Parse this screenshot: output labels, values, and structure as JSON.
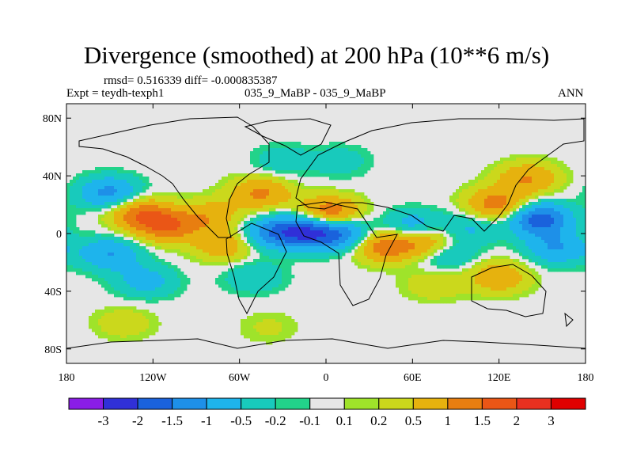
{
  "chart_data": {
    "type": "heatmap",
    "title": "Divergence (smoothed) at 200 hPa (10**6 m/s)",
    "stats_text": "rmsd= 0.516339  diff= -0.000835387",
    "experiment_text": "Expt = teydh-texph1",
    "case_text": "035_9_MaBP - 035_9_MaBP",
    "period": "ANN",
    "x_axis": {
      "range": [
        -180,
        180
      ],
      "ticks": [
        -180,
        -120,
        -60,
        0,
        60,
        120,
        180
      ],
      "tick_labels": [
        "180",
        "120W",
        "60W",
        "0",
        "60E",
        "120E",
        "180"
      ]
    },
    "y_axis": {
      "range": [
        -90,
        90
      ],
      "ticks": [
        -80,
        -40,
        0,
        40,
        80
      ],
      "tick_labels": [
        "80S",
        "40S",
        "0",
        "40N",
        "80N"
      ]
    },
    "colorbar": {
      "levels": [
        "-3",
        "-2",
        "-1.5",
        "-1",
        "-0.5",
        "-0.2",
        "-0.1",
        "0.1",
        "0.2",
        "0.5",
        "1",
        "1.5",
        "2",
        "3"
      ],
      "colors": [
        "#8a1de6",
        "#3030d8",
        "#1a62dc",
        "#1e90e8",
        "#1eb4ec",
        "#18cabc",
        "#22d38a",
        "#e6e6e6",
        "#9fe32a",
        "#cbd81c",
        "#e6b20e",
        "#e87e10",
        "#ea5616",
        "#e83020",
        "#e00000"
      ]
    },
    "anomalies": [
      {
        "lon": -150,
        "lat": 28,
        "value": -1.2
      },
      {
        "lon": -130,
        "lat": 14,
        "value": 1.3
      },
      {
        "lon": -150,
        "lat": -14,
        "value": -1.0
      },
      {
        "lon": -110,
        "lat": 5,
        "value": 1.4
      },
      {
        "lon": -80,
        "lat": 12,
        "value": 0.8
      },
      {
        "lon": -70,
        "lat": -8,
        "value": 0.9
      },
      {
        "lon": -45,
        "lat": 28,
        "value": 1.1
      },
      {
        "lon": -40,
        "lat": 0,
        "value": -1.1
      },
      {
        "lon": -15,
        "lat": 2,
        "value": -1.9
      },
      {
        "lon": 2,
        "lat": 14,
        "value": 1.6
      },
      {
        "lon": 10,
        "lat": 0,
        "value": -1.5
      },
      {
        "lon": 40,
        "lat": -8,
        "value": 1.4
      },
      {
        "lon": 70,
        "lat": -6,
        "value": 1.3
      },
      {
        "lon": 60,
        "lat": 4,
        "value": -1.0
      },
      {
        "lon": 82,
        "lat": -14,
        "value": -0.8
      },
      {
        "lon": 100,
        "lat": 4,
        "value": -0.6
      },
      {
        "lon": 118,
        "lat": 20,
        "value": 1.3
      },
      {
        "lon": 148,
        "lat": 10,
        "value": -1.8
      },
      {
        "lon": 140,
        "lat": 38,
        "value": 1.0
      },
      {
        "lon": 160,
        "lat": -10,
        "value": -1.0
      },
      {
        "lon": 120,
        "lat": -30,
        "value": 0.9
      },
      {
        "lon": -125,
        "lat": -33,
        "value": -0.7
      },
      {
        "lon": -50,
        "lat": -30,
        "value": -0.5
      },
      {
        "lon": -140,
        "lat": -62,
        "value": 0.4
      },
      {
        "lon": -40,
        "lat": -65,
        "value": 0.25
      },
      {
        "lon": 75,
        "lat": -35,
        "value": 0.45
      },
      {
        "lon": -30,
        "lat": 50,
        "value": -0.4
      },
      {
        "lon": 10,
        "lat": 50,
        "value": -0.35
      }
    ]
  }
}
